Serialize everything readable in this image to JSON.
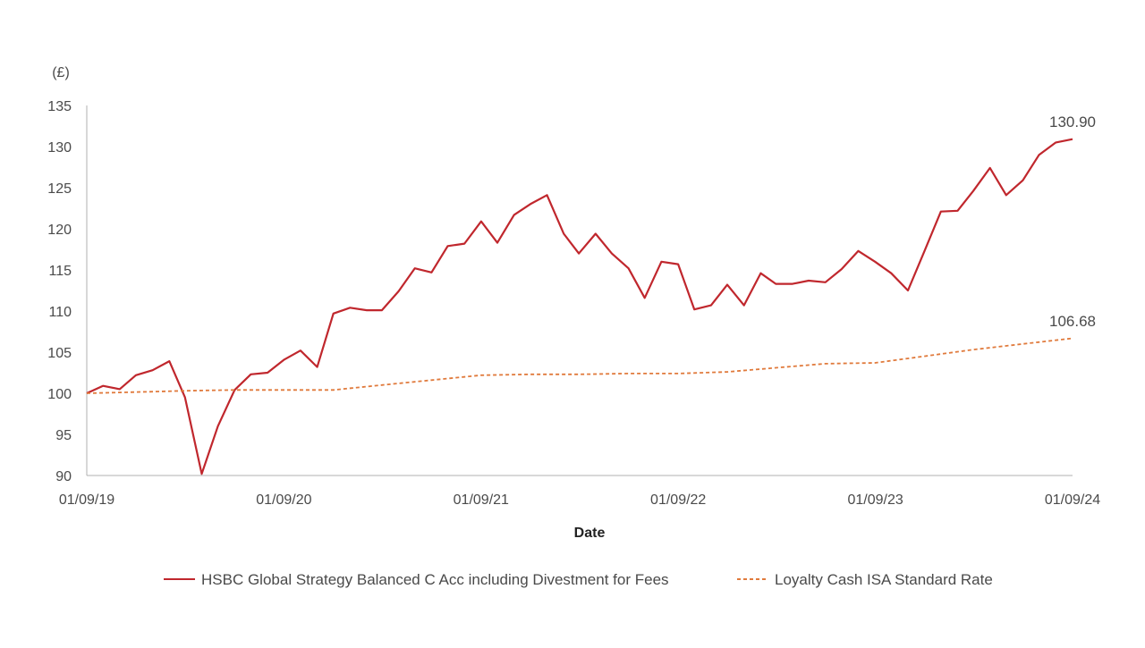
{
  "chart_data": {
    "type": "line",
    "title": "",
    "xlabel": "Date",
    "ylabel": "(£)",
    "ylim": [
      90,
      135
    ],
    "yticks": [
      "135",
      "130",
      "125",
      "120",
      "115",
      "110",
      "105",
      "100",
      "95",
      "90"
    ],
    "xticks": [
      "01/09/19",
      "01/09/20",
      "01/09/21",
      "01/09/22",
      "01/09/23",
      "01/09/24"
    ],
    "legend_position": "bottom",
    "grid": false,
    "end_labels": [
      "130.90",
      "106.68"
    ],
    "x_start": "2019-09-01",
    "x_end": "2024-09-01",
    "series": [
      {
        "name": "HSBC Global Strategy Balanced C Acc including Divestment for Fees",
        "color": "#c0272d",
        "style": "solid",
        "x": [
          "2019-09-01",
          "2019-10-01",
          "2019-11-01",
          "2019-12-01",
          "2020-01-01",
          "2020-02-01",
          "2020-03-01",
          "2020-04-01",
          "2020-05-01",
          "2020-06-01",
          "2020-07-01",
          "2020-08-01",
          "2020-09-01",
          "2020-10-01",
          "2020-11-01",
          "2020-12-01",
          "2021-01-01",
          "2021-02-01",
          "2021-03-01",
          "2021-04-01",
          "2021-05-01",
          "2021-06-01",
          "2021-07-01",
          "2021-08-01",
          "2021-09-01",
          "2021-10-01",
          "2021-11-01",
          "2021-12-01",
          "2022-01-01",
          "2022-02-01",
          "2022-03-01",
          "2022-04-01",
          "2022-05-01",
          "2022-06-01",
          "2022-07-01",
          "2022-08-01",
          "2022-09-01",
          "2022-10-01",
          "2022-11-01",
          "2022-12-01",
          "2023-01-01",
          "2023-02-01",
          "2023-03-01",
          "2023-04-01",
          "2023-05-01",
          "2023-06-01",
          "2023-07-01",
          "2023-08-01",
          "2023-09-01",
          "2023-10-01",
          "2023-11-01",
          "2023-12-01",
          "2024-01-01",
          "2024-02-01",
          "2024-03-01",
          "2024-04-01",
          "2024-05-01",
          "2024-06-01",
          "2024-07-01",
          "2024-08-01",
          "2024-09-01"
        ],
        "values": [
          100.0,
          100.9,
          100.5,
          102.2,
          102.8,
          103.9,
          99.5,
          90.2,
          96.0,
          100.4,
          102.3,
          102.5,
          104.1,
          105.2,
          103.2,
          109.7,
          110.4,
          110.1,
          110.1,
          112.4,
          115.2,
          114.7,
          117.9,
          118.2,
          120.9,
          118.3,
          121.7,
          123.0,
          124.1,
          119.4,
          117.0,
          119.4,
          117.0,
          115.2,
          111.6,
          116.0,
          115.7,
          110.2,
          110.7,
          113.2,
          110.7,
          114.6,
          113.3,
          113.3,
          113.7,
          113.5,
          115.1,
          117.3,
          116.0,
          114.6,
          112.5,
          117.2,
          122.1,
          122.2,
          124.6,
          127.4,
          124.1,
          125.9,
          129.0,
          130.5,
          130.9
        ]
      },
      {
        "name": "Loyalty Cash ISA Standard Rate",
        "color": "#e07a3c",
        "style": "dashed",
        "x": [
          "2019-09-01",
          "2020-01-01",
          "2020-03-01",
          "2020-06-01",
          "2020-09-01",
          "2020-12-01",
          "2021-03-01",
          "2021-06-01",
          "2021-09-01",
          "2021-12-01",
          "2022-03-01",
          "2022-06-01",
          "2022-09-01",
          "2022-12-01",
          "2023-03-01",
          "2023-06-01",
          "2023-09-01",
          "2023-12-01",
          "2024-03-01",
          "2024-06-01",
          "2024-09-01"
        ],
        "values": [
          100.0,
          100.2,
          100.3,
          100.4,
          100.4,
          100.4,
          101.0,
          101.6,
          102.2,
          102.3,
          102.3,
          102.4,
          102.4,
          102.6,
          103.1,
          103.6,
          103.7,
          104.5,
          105.3,
          106.0,
          106.68
        ]
      }
    ]
  }
}
